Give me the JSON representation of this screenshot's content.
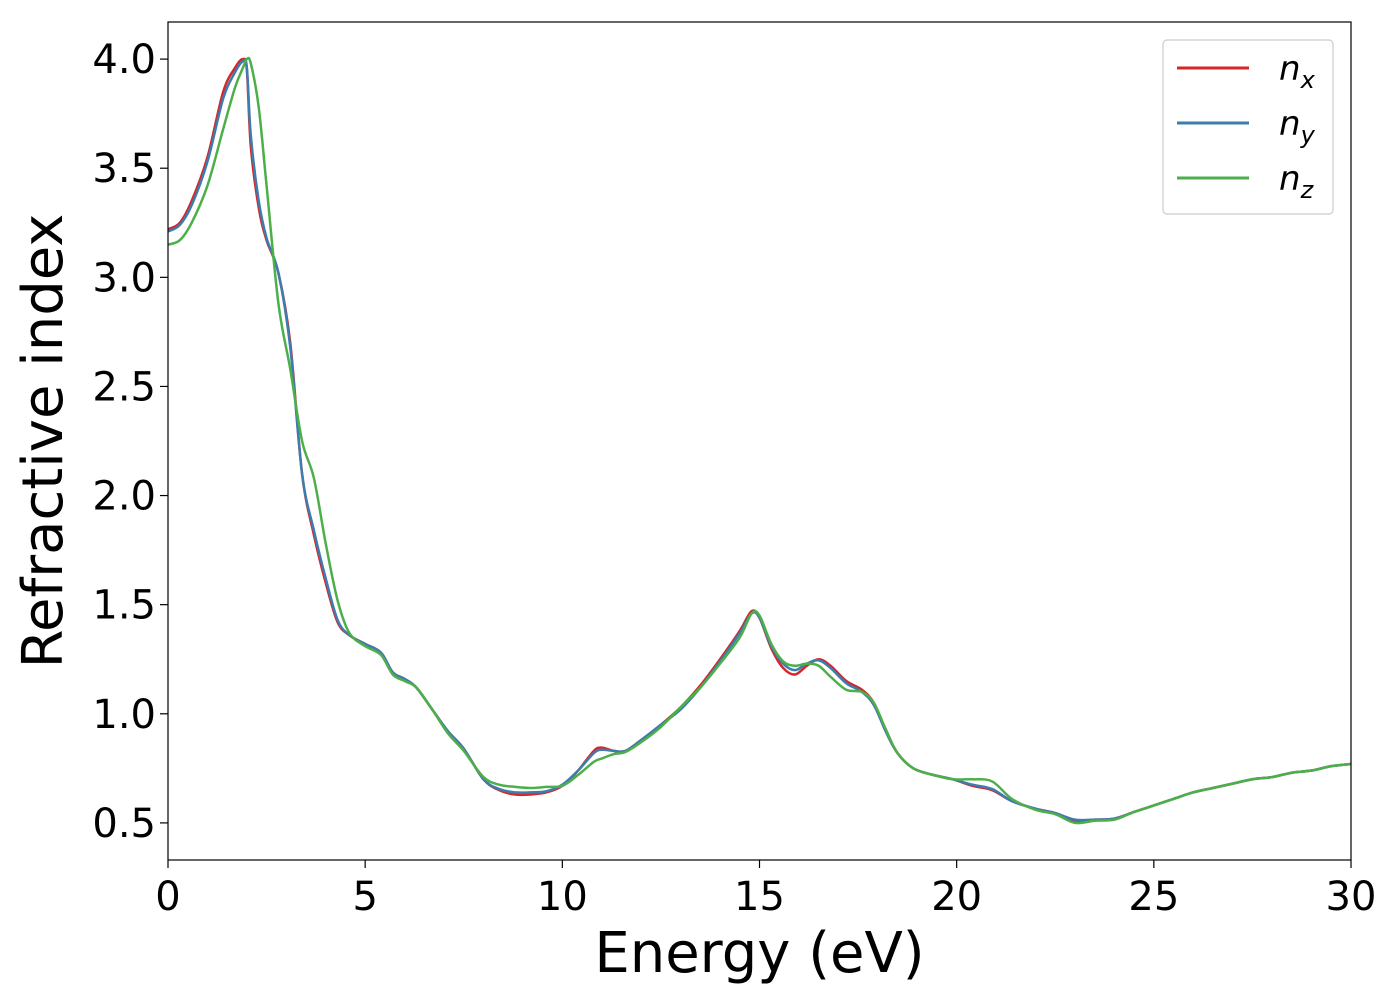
{
  "chart_data": {
    "type": "line",
    "title": "",
    "xlabel": "Energy (eV)",
    "ylabel": "Refractive index",
    "xlim": [
      0,
      30
    ],
    "ylim": [
      0.33,
      4.17
    ],
    "xticks": [
      0,
      5,
      10,
      15,
      20,
      25,
      30
    ],
    "xtick_labels": [
      "0",
      "5",
      "10",
      "15",
      "20",
      "25",
      "30"
    ],
    "yticks": [
      0.5,
      1.0,
      1.5,
      2.0,
      2.5,
      3.0,
      3.5,
      4.0
    ],
    "ytick_labels": [
      "0.5",
      "1.0",
      "1.5",
      "2.0",
      "2.5",
      "3.0",
      "3.5",
      "4.0"
    ],
    "grid": false,
    "legend_position": "top-right",
    "series": [
      {
        "name": "n",
        "subscript": "x",
        "color": "#d62728",
        "x": [
          0,
          0.3,
          0.6,
          1.0,
          1.4,
          1.7,
          1.9,
          2.0,
          2.1,
          2.3,
          2.5,
          2.8,
          3.1,
          3.4,
          3.7,
          4.0,
          4.3,
          4.6,
          5.0,
          5.4,
          5.7,
          6.0,
          6.3,
          6.7,
          7.1,
          7.5,
          8.0,
          8.4,
          8.8,
          9.2,
          9.6,
          10.0,
          10.4,
          10.8,
          11.0,
          11.3,
          11.6,
          12.0,
          12.5,
          13.0,
          13.5,
          14.0,
          14.5,
          14.8,
          15.0,
          15.3,
          15.6,
          15.9,
          16.2,
          16.5,
          16.8,
          17.2,
          17.6,
          17.9,
          18.2,
          18.5,
          18.9,
          19.4,
          19.9,
          20.4,
          20.9,
          21.4,
          22.0,
          22.5,
          23.0,
          23.5,
          24.0,
          24.5,
          25.0,
          25.5,
          26.0,
          26.5,
          27.0,
          27.5,
          28.0,
          28.5,
          29.0,
          29.5,
          30.0
        ],
        "y": [
          3.22,
          3.25,
          3.35,
          3.55,
          3.85,
          3.96,
          4.0,
          3.95,
          3.6,
          3.32,
          3.17,
          3.02,
          2.7,
          2.1,
          1.82,
          1.6,
          1.42,
          1.36,
          1.32,
          1.28,
          1.19,
          1.16,
          1.12,
          1.02,
          0.92,
          0.84,
          0.7,
          0.65,
          0.63,
          0.63,
          0.64,
          0.67,
          0.74,
          0.83,
          0.845,
          0.83,
          0.83,
          0.88,
          0.95,
          1.03,
          1.13,
          1.25,
          1.38,
          1.47,
          1.44,
          1.3,
          1.21,
          1.18,
          1.22,
          1.25,
          1.22,
          1.15,
          1.11,
          1.05,
          0.92,
          0.82,
          0.75,
          0.72,
          0.7,
          0.67,
          0.65,
          0.6,
          0.565,
          0.545,
          0.51,
          0.515,
          0.52,
          0.55,
          0.58,
          0.61,
          0.64,
          0.66,
          0.68,
          0.7,
          0.71,
          0.73,
          0.74,
          0.76,
          0.77
        ]
      },
      {
        "name": "n",
        "subscript": "y",
        "color": "#3d7cae",
        "x": [
          0,
          0.3,
          0.6,
          1.0,
          1.4,
          1.7,
          1.9,
          2.0,
          2.1,
          2.3,
          2.5,
          2.8,
          3.1,
          3.4,
          3.7,
          4.0,
          4.3,
          4.6,
          5.0,
          5.4,
          5.7,
          6.0,
          6.3,
          6.7,
          7.1,
          7.5,
          8.0,
          8.4,
          8.8,
          9.2,
          9.6,
          10.0,
          10.4,
          10.8,
          11.0,
          11.3,
          11.6,
          12.0,
          12.5,
          13.0,
          13.5,
          14.0,
          14.5,
          14.8,
          15.0,
          15.3,
          15.6,
          15.9,
          16.2,
          16.5,
          16.8,
          17.2,
          17.6,
          17.9,
          18.2,
          18.5,
          18.9,
          19.4,
          19.9,
          20.4,
          20.9,
          21.4,
          22.0,
          22.5,
          23.0,
          23.5,
          24.0,
          24.5,
          25.0,
          25.5,
          26.0,
          26.5,
          27.0,
          27.5,
          28.0,
          28.5,
          29.0,
          29.5,
          30.0
        ],
        "y": [
          3.21,
          3.24,
          3.33,
          3.53,
          3.82,
          3.94,
          3.99,
          3.96,
          3.65,
          3.35,
          3.18,
          3.02,
          2.68,
          2.1,
          1.84,
          1.62,
          1.43,
          1.36,
          1.32,
          1.28,
          1.19,
          1.16,
          1.12,
          1.02,
          0.92,
          0.84,
          0.7,
          0.655,
          0.64,
          0.64,
          0.645,
          0.675,
          0.74,
          0.82,
          0.835,
          0.83,
          0.83,
          0.88,
          0.95,
          1.02,
          1.12,
          1.24,
          1.37,
          1.46,
          1.44,
          1.31,
          1.23,
          1.2,
          1.23,
          1.245,
          1.21,
          1.14,
          1.1,
          1.04,
          0.92,
          0.82,
          0.75,
          0.72,
          0.7,
          0.675,
          0.655,
          0.6,
          0.565,
          0.545,
          0.515,
          0.515,
          0.52,
          0.55,
          0.58,
          0.61,
          0.64,
          0.66,
          0.68,
          0.7,
          0.71,
          0.73,
          0.74,
          0.76,
          0.77
        ]
      },
      {
        "name": "n",
        "subscript": "z",
        "color": "#4daf4a",
        "x": [
          0,
          0.3,
          0.6,
          1.0,
          1.4,
          1.7,
          1.9,
          2.0,
          2.1,
          2.3,
          2.5,
          2.8,
          3.1,
          3.4,
          3.7,
          4.0,
          4.3,
          4.6,
          5.0,
          5.4,
          5.7,
          6.0,
          6.3,
          6.7,
          7.1,
          7.5,
          8.0,
          8.4,
          8.8,
          9.2,
          9.6,
          10.0,
          10.4,
          10.8,
          11.0,
          11.3,
          11.6,
          12.0,
          12.5,
          13.0,
          13.5,
          14.0,
          14.5,
          14.8,
          15.0,
          15.3,
          15.6,
          15.9,
          16.2,
          16.5,
          16.8,
          17.2,
          17.6,
          17.9,
          18.2,
          18.5,
          18.9,
          19.4,
          19.9,
          20.4,
          20.9,
          21.4,
          22.0,
          22.5,
          23.0,
          23.5,
          24.0,
          24.5,
          25.0,
          25.5,
          26.0,
          26.5,
          27.0,
          27.5,
          28.0,
          28.5,
          29.0,
          29.5,
          30.0
        ],
        "y": [
          3.15,
          3.17,
          3.25,
          3.42,
          3.68,
          3.87,
          3.96,
          4.0,
          3.98,
          3.78,
          3.42,
          2.88,
          2.58,
          2.25,
          2.08,
          1.78,
          1.52,
          1.37,
          1.31,
          1.27,
          1.18,
          1.15,
          1.12,
          1.02,
          0.91,
          0.83,
          0.71,
          0.675,
          0.665,
          0.66,
          0.665,
          0.67,
          0.72,
          0.78,
          0.795,
          0.815,
          0.825,
          0.87,
          0.94,
          1.03,
          1.12,
          1.23,
          1.35,
          1.46,
          1.45,
          1.32,
          1.24,
          1.22,
          1.23,
          1.22,
          1.17,
          1.11,
          1.1,
          1.05,
          0.93,
          0.82,
          0.75,
          0.72,
          0.7,
          0.7,
          0.69,
          0.61,
          0.56,
          0.54,
          0.5,
          0.51,
          0.515,
          0.55,
          0.58,
          0.61,
          0.64,
          0.66,
          0.68,
          0.7,
          0.71,
          0.73,
          0.74,
          0.76,
          0.77
        ]
      }
    ]
  }
}
